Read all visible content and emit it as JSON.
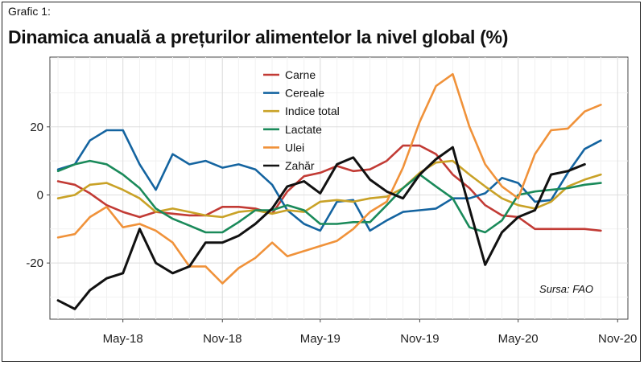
{
  "figure_label": "Grafic 1:",
  "title": "Dinamica anuală a prețurilor alimentelor la nivel global (%)",
  "source": "Sursa: FAO",
  "chart_data": {
    "type": "line",
    "x": [
      "2018-01",
      "2018-02",
      "2018-03",
      "2018-04",
      "2018-05",
      "2018-06",
      "2018-07",
      "2018-08",
      "2018-09",
      "2018-10",
      "2018-11",
      "2018-12",
      "2019-01",
      "2019-02",
      "2019-03",
      "2019-04",
      "2019-05",
      "2019-06",
      "2019-07",
      "2019-08",
      "2019-09",
      "2019-10",
      "2019-11",
      "2019-12",
      "2020-01",
      "2020-02",
      "2020-03",
      "2020-04",
      "2020-05",
      "2020-06",
      "2020-07",
      "2020-08",
      "2020-09",
      "2020-10"
    ],
    "x_ticks": [
      {
        "x": "2018-05",
        "label": "May-18"
      },
      {
        "x": "2018-11",
        "label": "Nov-18"
      },
      {
        "x": "2019-05",
        "label": "May-19"
      },
      {
        "x": "2019-11",
        "label": "Nov-19"
      },
      {
        "x": "2020-05",
        "label": "May-20"
      },
      {
        "x": "2020-11",
        "label": "Nov-20"
      }
    ],
    "y_ticks": [
      20,
      0,
      -20
    ],
    "y_tick_labels": [
      "20",
      "0",
      "-20"
    ],
    "xlim": [
      "2017-12-17",
      "2020-11-20"
    ],
    "ylim": [
      -36.5,
      40.5
    ],
    "grid": true,
    "legend": "top-center",
    "series": [
      {
        "name": "Carne",
        "color": "#c23b35",
        "values": [
          4,
          3,
          0.5,
          -3,
          -5,
          -6.5,
          -5,
          -5.5,
          -6,
          -6,
          -3.5,
          -3.5,
          -4,
          -5.5,
          1,
          5.5,
          6.5,
          8.5,
          7,
          7.5,
          10,
          14.5,
          14.5,
          12,
          6,
          2,
          -3,
          -6,
          -6.5,
          -10,
          -10,
          -10,
          -10,
          -10.5
        ]
      },
      {
        "name": "Cereale",
        "color": "#1464a0",
        "values": [
          7.5,
          9,
          16,
          19,
          19,
          9,
          1.5,
          12,
          9,
          10,
          8,
          9,
          7.5,
          3,
          -4.5,
          -8.5,
          -10.5,
          -2,
          -1.5,
          -10.5,
          -7.5,
          -5,
          -4.5,
          -4,
          -1,
          -1,
          0.5,
          5,
          3.5,
          -2,
          -1.5,
          6.5,
          13.5,
          16
        ]
      },
      {
        "name": "Indice total",
        "color": "#c9a227",
        "values": [
          -1,
          0,
          3,
          3.5,
          1.5,
          -1,
          -5,
          -4,
          -5,
          -6,
          -6.5,
          -5,
          -4.5,
          -5.5,
          -4.5,
          -5,
          -2,
          -1.5,
          -2,
          -1,
          -0.5,
          2,
          6.5,
          9.5,
          10,
          6,
          2.5,
          -1,
          -3,
          -4,
          -2,
          2.5,
          4.5,
          6
        ]
      },
      {
        "name": "Lactate",
        "color": "#1a8a5a",
        "values": [
          7,
          9,
          10,
          9,
          6,
          2,
          -4,
          -7,
          -9,
          -11,
          -11,
          -8,
          -4.5,
          -4.5,
          -3,
          -4.5,
          -8.5,
          -8.5,
          -8,
          -8,
          -3,
          2,
          6,
          2.5,
          -1,
          -9.5,
          -11,
          -7.5,
          0,
          1,
          1.5,
          2,
          3,
          3.5
        ]
      },
      {
        "name": "Ulei",
        "color": "#f0923a",
        "values": [
          -12.5,
          -11.5,
          -6.5,
          -3.5,
          -9.5,
          -8.5,
          -10.5,
          -14,
          -21,
          -21,
          -26,
          -21.5,
          -18.5,
          -14,
          -18,
          -16.5,
          -15,
          -13.5,
          -10,
          -5,
          -2,
          8,
          21.5,
          32,
          35.5,
          20,
          9,
          2.5,
          -1,
          12,
          19,
          19.5,
          24.5,
          26.5
        ]
      },
      {
        "name": "Zahăr",
        "color": "#111111",
        "values": [
          -31,
          -33.5,
          -28,
          -24.5,
          -23,
          -10,
          -20,
          -23,
          -21,
          -14,
          -14,
          -12,
          -8.5,
          -4,
          2.5,
          4,
          0.5,
          9,
          11,
          4.5,
          1,
          -1,
          6,
          10.5,
          14,
          -4,
          -20.5,
          -11,
          -6.5,
          -4.5,
          6,
          7,
          9,
          null
        ]
      }
    ]
  }
}
